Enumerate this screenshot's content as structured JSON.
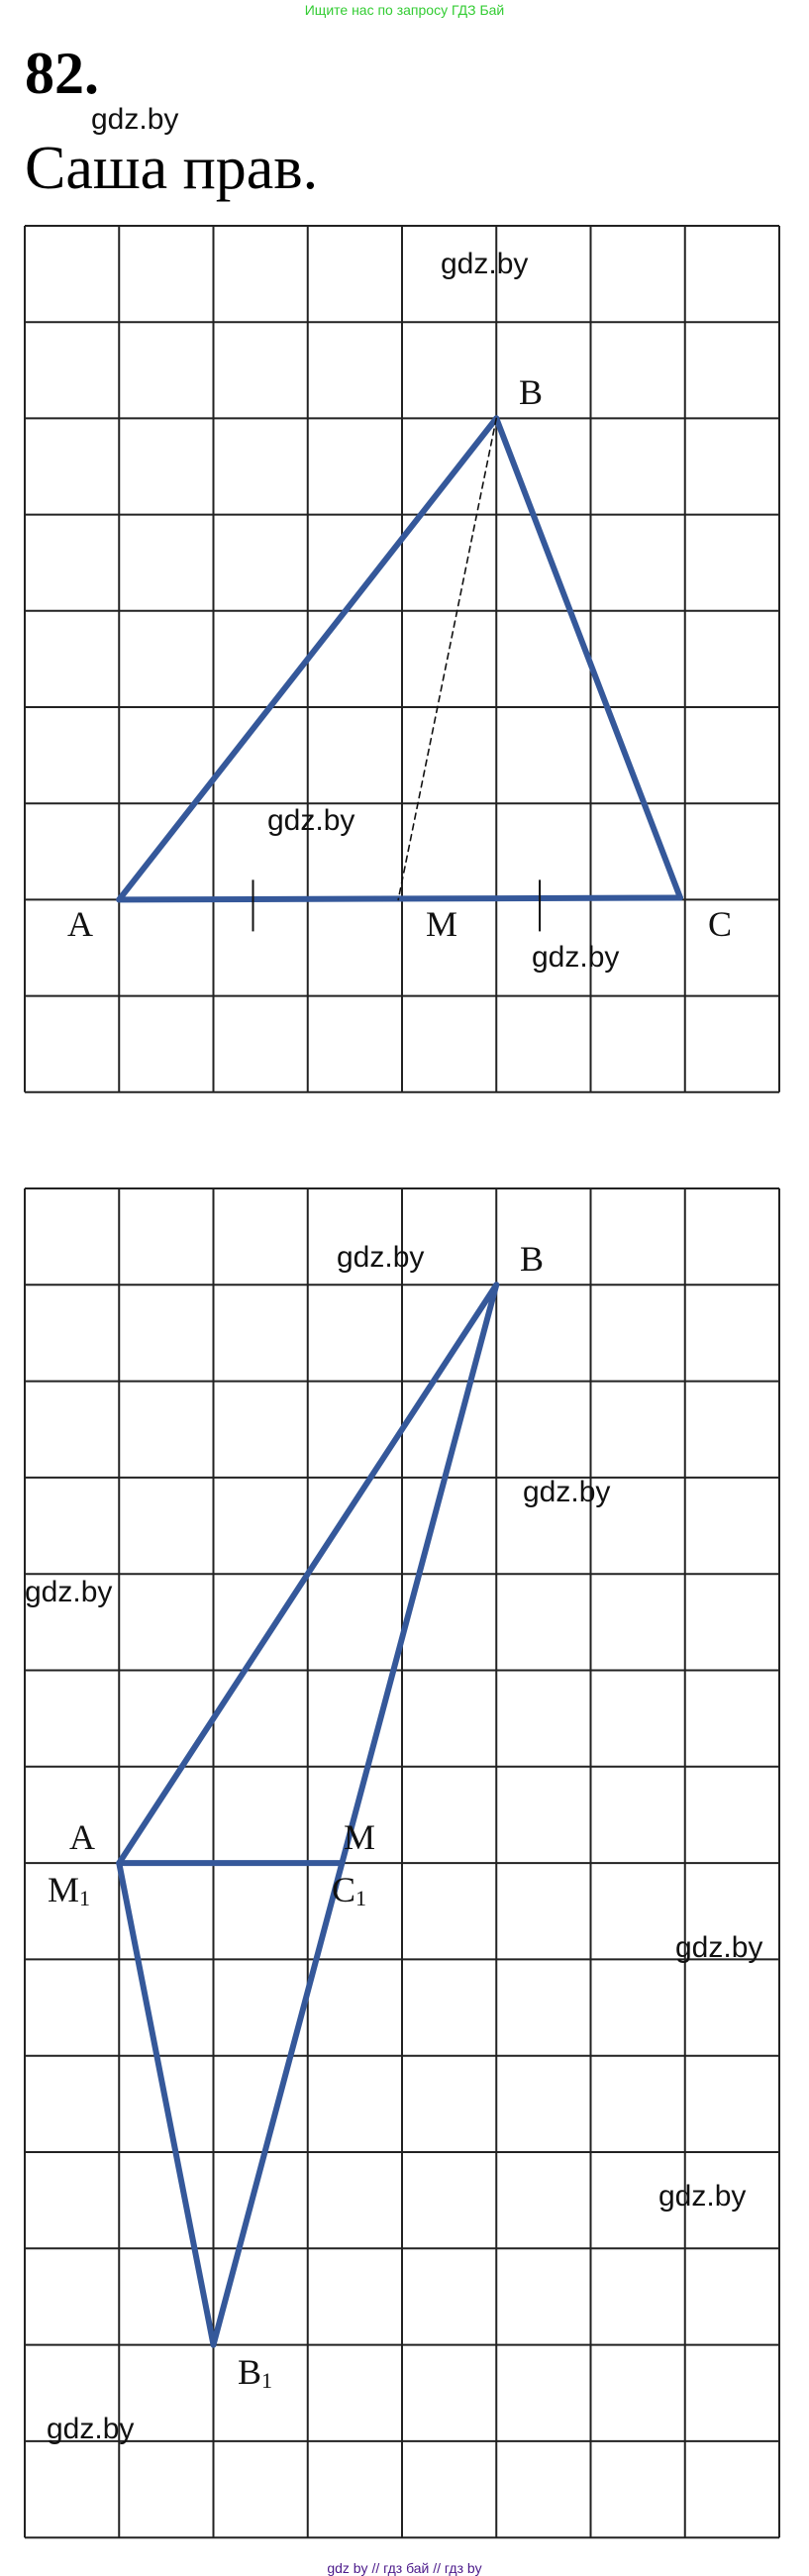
{
  "banner": "Ищите нас по запросу ГДЗ Бай",
  "exercise_number": "82.",
  "answer": "Саша прав.",
  "watermark": "gdz.by",
  "footer": "gdz by  //  гдз бай  //  гдз by",
  "figure1": {
    "labels": {
      "A": "A",
      "B": "B",
      "M": "M",
      "C": "C"
    }
  },
  "figure2": {
    "labels": {
      "A": "A",
      "M1": "M",
      "M1_sub": "1",
      "B": "B",
      "M": "M",
      "C1": "C",
      "C1_sub": "1",
      "B1": "B",
      "B1_sub": "1"
    }
  },
  "colors": {
    "triangle": "#35589a",
    "banner": "#33cc33",
    "footer": "#4b1a8a"
  }
}
